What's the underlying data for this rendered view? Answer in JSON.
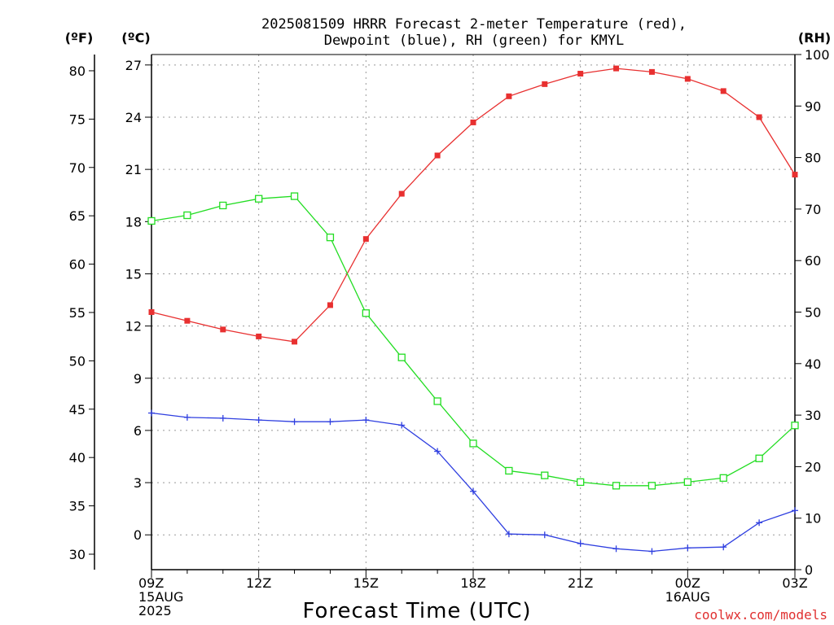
{
  "title_line1": "2025081509 HRRR Forecast 2-meter Temperature (red),",
  "title_line2": "Dewpoint (blue), RH (green) for KMYL",
  "unit_f": "(ºF)",
  "unit_c": "(ºC)",
  "unit_rh": "(RH)",
  "credit": "coolwx.com/models",
  "chart_data": {
    "type": "line",
    "xlabel": "Forecast Time (UTC)",
    "x_ticks": [
      {
        "hour": 0,
        "label": [
          "09Z",
          "15AUG",
          "2025"
        ]
      },
      {
        "hour": 3,
        "label": [
          "12Z"
        ]
      },
      {
        "hour": 6,
        "label": [
          "15Z"
        ]
      },
      {
        "hour": 9,
        "label": [
          "18Z"
        ]
      },
      {
        "hour": 12,
        "label": [
          "21Z"
        ]
      },
      {
        "hour": 15,
        "label": [
          "00Z",
          "16AUG"
        ]
      },
      {
        "hour": 18,
        "label": [
          "03Z"
        ]
      }
    ],
    "celsius_axis": {
      "range": [
        -2,
        27.6
      ],
      "ticks": [
        0,
        3,
        6,
        9,
        12,
        15,
        18,
        21,
        24,
        27
      ]
    },
    "fahrenheit_axis": {
      "ticks": [
        30,
        35,
        40,
        45,
        50,
        55,
        60,
        65,
        70,
        75,
        80
      ]
    },
    "rh_axis": {
      "range": [
        0,
        100
      ],
      "ticks": [
        0,
        10,
        20,
        30,
        40,
        50,
        60,
        70,
        80,
        90,
        100
      ]
    },
    "grid": true,
    "series": [
      {
        "name": "Temperature",
        "unit": "C",
        "color": "#e83030",
        "marker": "filled-square",
        "values": [
          12.8,
          12.3,
          11.8,
          11.4,
          11.1,
          13.2,
          17.0,
          19.6,
          21.8,
          23.7,
          25.2,
          25.9,
          26.5,
          26.8,
          26.6,
          26.2,
          25.5,
          24.0,
          20.7
        ]
      },
      {
        "name": "Dewpoint",
        "unit": "C",
        "color": "#2f3fe0",
        "marker": "plus",
        "values": [
          7.0,
          6.75,
          6.7,
          6.6,
          6.5,
          6.5,
          6.6,
          6.3,
          4.8,
          2.5,
          0.05,
          0.0,
          -0.5,
          -0.8,
          -0.95,
          -0.75,
          -0.7,
          0.7,
          1.4
        ]
      },
      {
        "name": "RH",
        "unit": "%",
        "color": "#22dd22",
        "marker": "open-square",
        "values": [
          67.7,
          68.8,
          70.7,
          72.0,
          72.5,
          64.5,
          49.8,
          41.2,
          32.7,
          24.5,
          19.2,
          18.3,
          17.0,
          16.3,
          16.3,
          17.0,
          17.8,
          21.6,
          28.0
        ]
      }
    ]
  }
}
